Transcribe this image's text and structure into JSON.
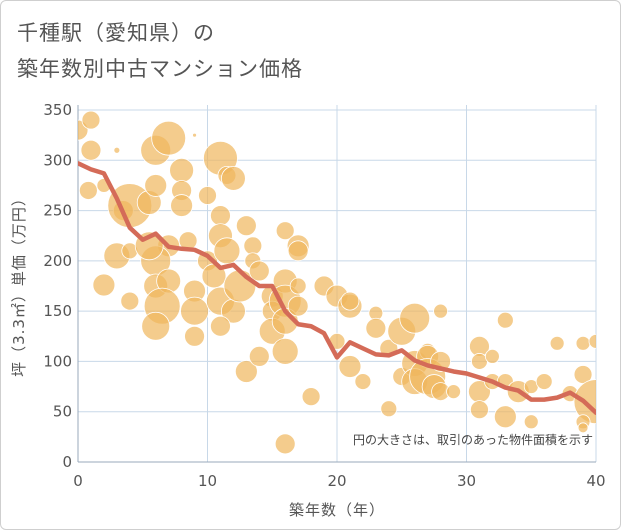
{
  "title_line1": "千種駅（愛知県）の",
  "title_line2": "築年数別中古マンション価格",
  "note": "円の大きさは、取引のあった物件面積を示す",
  "colors": {
    "bubble": "#f0b65c",
    "line": "#d46b58",
    "grid": "#c8d8e8",
    "plot_bg": "#ffffff",
    "text": "#555555"
  },
  "chart_data": {
    "type": "scatter",
    "xlabel": "築年数（年）",
    "ylabel": "坪（3.3㎡）単価（万円）",
    "xlim": [
      0,
      40
    ],
    "ylim": [
      0,
      355
    ],
    "x_ticks": [
      0,
      10,
      20,
      30,
      40
    ],
    "y_ticks": [
      0,
      50,
      100,
      150,
      200,
      250,
      300,
      350
    ],
    "grid": true,
    "bubbles": [
      {
        "x": 0.0,
        "y": 330,
        "s": 10
      },
      {
        "x": 1.0,
        "y": 340,
        "s": 9
      },
      {
        "x": 1.0,
        "y": 310,
        "s": 10
      },
      {
        "x": 0.8,
        "y": 270,
        "s": 9
      },
      {
        "x": 2.0,
        "y": 275,
        "s": 7
      },
      {
        "x": 3.0,
        "y": 310,
        "s": 3
      },
      {
        "x": 3.5,
        "y": 250,
        "s": 10
      },
      {
        "x": 4.0,
        "y": 255,
        "s": 22
      },
      {
        "x": 3.0,
        "y": 205,
        "s": 13
      },
      {
        "x": 4.0,
        "y": 210,
        "s": 8
      },
      {
        "x": 2.0,
        "y": 176,
        "s": 11
      },
      {
        "x": 4.0,
        "y": 160,
        "s": 9
      },
      {
        "x": 5.5,
        "y": 258,
        "s": 12
      },
      {
        "x": 6.0,
        "y": 275,
        "s": 11
      },
      {
        "x": 6.0,
        "y": 310,
        "s": 15
      },
      {
        "x": 7.0,
        "y": 322,
        "s": 17
      },
      {
        "x": 8.0,
        "y": 290,
        "s": 12
      },
      {
        "x": 9.0,
        "y": 325,
        "s": 2
      },
      {
        "x": 8.0,
        "y": 270,
        "s": 10
      },
      {
        "x": 7.0,
        "y": 215,
        "s": 11
      },
      {
        "x": 6.0,
        "y": 200,
        "s": 15
      },
      {
        "x": 5.5,
        "y": 215,
        "s": 14
      },
      {
        "x": 6.0,
        "y": 175,
        "s": 12
      },
      {
        "x": 7.0,
        "y": 180,
        "s": 12
      },
      {
        "x": 6.5,
        "y": 155,
        "s": 18
      },
      {
        "x": 6.0,
        "y": 135,
        "s": 14
      },
      {
        "x": 8.0,
        "y": 255,
        "s": 11
      },
      {
        "x": 8.5,
        "y": 220,
        "s": 9
      },
      {
        "x": 9.0,
        "y": 170,
        "s": 11
      },
      {
        "x": 9.0,
        "y": 150,
        "s": 14
      },
      {
        "x": 9.0,
        "y": 125,
        "s": 10
      },
      {
        "x": 10.0,
        "y": 265,
        "s": 9
      },
      {
        "x": 11.0,
        "y": 302,
        "s": 17
      },
      {
        "x": 11.5,
        "y": 285,
        "s": 9
      },
      {
        "x": 12.0,
        "y": 282,
        "s": 12
      },
      {
        "x": 10.0,
        "y": 200,
        "s": 10
      },
      {
        "x": 11.0,
        "y": 245,
        "s": 10
      },
      {
        "x": 11.0,
        "y": 225,
        "s": 12
      },
      {
        "x": 11.5,
        "y": 210,
        "s": 13
      },
      {
        "x": 10.5,
        "y": 185,
        "s": 12
      },
      {
        "x": 11.0,
        "y": 160,
        "s": 14
      },
      {
        "x": 12.0,
        "y": 150,
        "s": 12
      },
      {
        "x": 11.0,
        "y": 135,
        "s": 10
      },
      {
        "x": 12.5,
        "y": 175,
        "s": 16
      },
      {
        "x": 13.0,
        "y": 235,
        "s": 10
      },
      {
        "x": 13.5,
        "y": 215,
        "s": 9
      },
      {
        "x": 13.5,
        "y": 200,
        "s": 8
      },
      {
        "x": 14.0,
        "y": 190,
        "s": 10
      },
      {
        "x": 13.0,
        "y": 90,
        "s": 11
      },
      {
        "x": 14.0,
        "y": 105,
        "s": 10
      },
      {
        "x": 15.0,
        "y": 165,
        "s": 11
      },
      {
        "x": 15.0,
        "y": 150,
        "s": 10
      },
      {
        "x": 15.0,
        "y": 130,
        "s": 13
      },
      {
        "x": 16.0,
        "y": 180,
        "s": 12
      },
      {
        "x": 16.0,
        "y": 160,
        "s": 16
      },
      {
        "x": 16.0,
        "y": 140,
        "s": 13
      },
      {
        "x": 16.0,
        "y": 230,
        "s": 9
      },
      {
        "x": 17.0,
        "y": 215,
        "s": 11
      },
      {
        "x": 17.0,
        "y": 210,
        "s": 10
      },
      {
        "x": 17.0,
        "y": 175,
        "s": 8
      },
      {
        "x": 17.0,
        "y": 155,
        "s": 10
      },
      {
        "x": 16.0,
        "y": 110,
        "s": 13
      },
      {
        "x": 18.0,
        "y": 65,
        "s": 9
      },
      {
        "x": 16.0,
        "y": 18,
        "s": 10
      },
      {
        "x": 19.0,
        "y": 175,
        "s": 10
      },
      {
        "x": 20.0,
        "y": 165,
        "s": 11
      },
      {
        "x": 21.0,
        "y": 155,
        "s": 12
      },
      {
        "x": 21.0,
        "y": 160,
        "s": 9
      },
      {
        "x": 20.0,
        "y": 120,
        "s": 8
      },
      {
        "x": 21.0,
        "y": 95,
        "s": 11
      },
      {
        "x": 22.0,
        "y": 80,
        "s": 8
      },
      {
        "x": 23.0,
        "y": 148,
        "s": 7
      },
      {
        "x": 23.0,
        "y": 133,
        "s": 10
      },
      {
        "x": 24.0,
        "y": 113,
        "s": 9
      },
      {
        "x": 24.0,
        "y": 53,
        "s": 8
      },
      {
        "x": 25.0,
        "y": 130,
        "s": 14
      },
      {
        "x": 25.0,
        "y": 85,
        "s": 9
      },
      {
        "x": 26.0,
        "y": 143,
        "s": 15
      },
      {
        "x": 26.0,
        "y": 98,
        "s": 13
      },
      {
        "x": 26.0,
        "y": 80,
        "s": 13
      },
      {
        "x": 27.0,
        "y": 110,
        "s": 8
      },
      {
        "x": 27.0,
        "y": 105,
        "s": 11
      },
      {
        "x": 27.0,
        "y": 85,
        "s": 18
      },
      {
        "x": 27.5,
        "y": 75,
        "s": 12
      },
      {
        "x": 28.0,
        "y": 150,
        "s": 7
      },
      {
        "x": 28.0,
        "y": 100,
        "s": 10
      },
      {
        "x": 28.0,
        "y": 70,
        "s": 9
      },
      {
        "x": 29.0,
        "y": 70,
        "s": 7
      },
      {
        "x": 31.0,
        "y": 115,
        "s": 10
      },
      {
        "x": 31.0,
        "y": 100,
        "s": 8
      },
      {
        "x": 31.0,
        "y": 70,
        "s": 11
      },
      {
        "x": 31.0,
        "y": 52,
        "s": 9
      },
      {
        "x": 32.0,
        "y": 105,
        "s": 7
      },
      {
        "x": 32.0,
        "y": 80,
        "s": 8
      },
      {
        "x": 33.0,
        "y": 141,
        "s": 8
      },
      {
        "x": 33.0,
        "y": 80,
        "s": 8
      },
      {
        "x": 33.0,
        "y": 45,
        "s": 11
      },
      {
        "x": 34.0,
        "y": 70,
        "s": 11
      },
      {
        "x": 35.0,
        "y": 75,
        "s": 7
      },
      {
        "x": 35.0,
        "y": 40,
        "s": 7
      },
      {
        "x": 36.0,
        "y": 80,
        "s": 8
      },
      {
        "x": 37.0,
        "y": 118,
        "s": 7
      },
      {
        "x": 38.0,
        "y": 68,
        "s": 8
      },
      {
        "x": 39.0,
        "y": 118,
        "s": 7
      },
      {
        "x": 39.0,
        "y": 87,
        "s": 9
      },
      {
        "x": 40.0,
        "y": 120,
        "s": 7
      },
      {
        "x": 40.0,
        "y": 60,
        "s": 22
      },
      {
        "x": 39.0,
        "y": 40,
        "s": 7
      },
      {
        "x": 39.0,
        "y": 34,
        "s": 5
      }
    ],
    "trend": {
      "x": [
        0,
        1,
        2,
        3,
        4,
        5,
        6,
        7,
        8,
        9,
        10,
        11,
        12,
        13,
        14,
        15,
        16,
        17,
        18,
        19,
        20,
        21,
        22,
        23,
        24,
        25,
        26,
        27,
        28,
        29,
        30,
        31,
        32,
        33,
        34,
        35,
        36,
        37,
        38,
        39,
        40
      ],
      "y": [
        297,
        291,
        287,
        262,
        233,
        221,
        227,
        214,
        212,
        211,
        205,
        193,
        196,
        184,
        175,
        175,
        150,
        137,
        135,
        128,
        104,
        119,
        113,
        107,
        106,
        111,
        101,
        96,
        93,
        90,
        88,
        84,
        80,
        74,
        71,
        62,
        62,
        64,
        69,
        61,
        49
      ]
    }
  }
}
